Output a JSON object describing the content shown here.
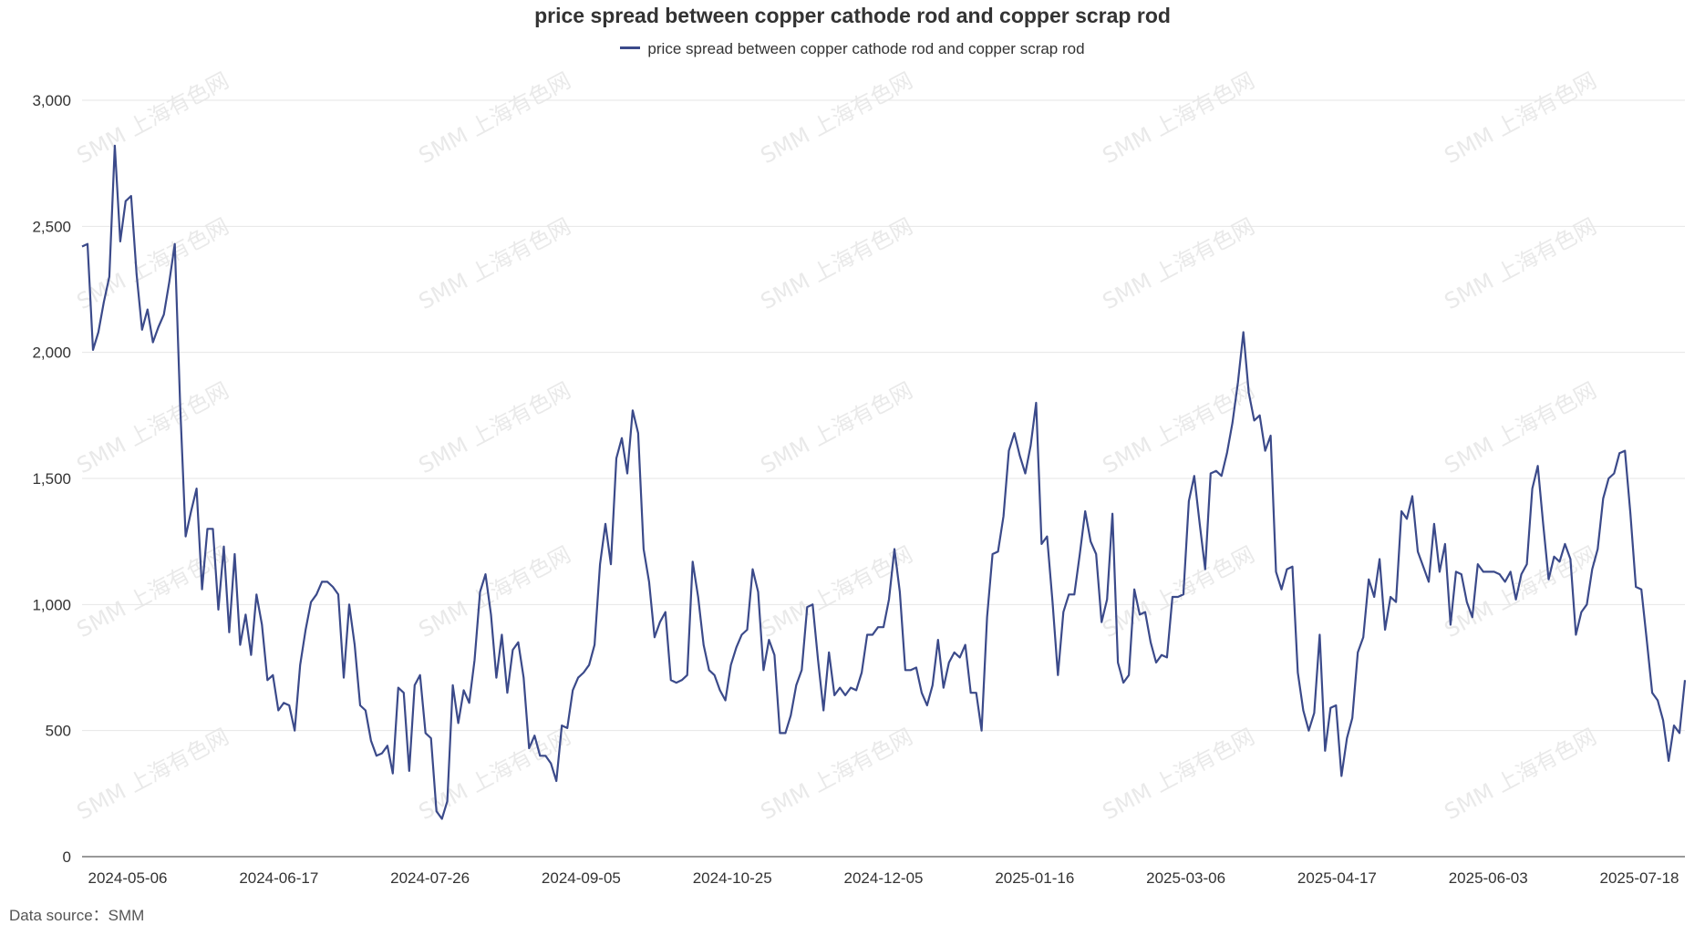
{
  "colors": {
    "line": "#3b4a8a",
    "grid": "#e6e6e6",
    "axis": "#333333"
  },
  "source_text": "Data source：SMM",
  "watermark_text": "SMM 上海有色网",
  "chart_data": {
    "type": "line",
    "title": "price spread between copper cathode rod and copper scrap rod",
    "legend_position": "top-center",
    "grid": true,
    "ylim": [
      0,
      3000
    ],
    "yticks": [
      0,
      500,
      1000,
      1500,
      2000,
      2500,
      3000
    ],
    "ytick_labels": [
      "0",
      "500",
      "1,000",
      "1,500",
      "2,000",
      "2,500",
      "3,000"
    ],
    "xtick_labels": [
      "2024-05-06",
      "2024-06-17",
      "2024-07-26",
      "2024-09-05",
      "2024-10-25",
      "2024-12-05",
      "2025-01-16",
      "2025-03-06",
      "2025-04-17",
      "2025-06-03",
      "2025-07-18"
    ],
    "series": [
      {
        "name": "price spread between copper cathode rod and copper scrap rod",
        "values": [
          2420,
          2430,
          2010,
          2080,
          2200,
          2300,
          2820,
          2440,
          2600,
          2620,
          2310,
          2090,
          2170,
          2040,
          2100,
          2150,
          2280,
          2430,
          1790,
          1270,
          1370,
          1460,
          1060,
          1300,
          1300,
          980,
          1230,
          890,
          1200,
          840,
          960,
          800,
          1040,
          920,
          700,
          720,
          580,
          610,
          600,
          500,
          760,
          900,
          1010,
          1040,
          1090,
          1090,
          1070,
          1040,
          710,
          1000,
          840,
          600,
          580,
          460,
          400,
          410,
          440,
          330,
          670,
          650,
          340,
          680,
          720,
          490,
          470,
          180,
          150,
          220,
          680,
          530,
          660,
          610,
          780,
          1050,
          1120,
          960,
          710,
          880,
          650,
          820,
          850,
          710,
          430,
          480,
          400,
          400,
          370,
          300,
          520,
          510,
          660,
          710,
          730,
          760,
          840,
          1160,
          1320,
          1160,
          1580,
          1660,
          1520,
          1770,
          1680,
          1220,
          1090,
          870,
          930,
          970,
          700,
          690,
          700,
          720,
          1170,
          1030,
          840,
          740,
          720,
          660,
          620,
          760,
          830,
          880,
          900,
          1140,
          1050,
          740,
          860,
          800,
          490,
          490,
          560,
          680,
          740,
          990,
          1000,
          780,
          580,
          810,
          640,
          670,
          640,
          670,
          660,
          730,
          880,
          880,
          910,
          910,
          1020,
          1220,
          1050,
          740,
          740,
          750,
          650,
          600,
          680,
          860,
          670,
          770,
          810,
          790,
          840,
          650,
          650,
          500,
          950,
          1200,
          1210,
          1350,
          1610,
          1680,
          1590,
          1520,
          1630,
          1800,
          1240,
          1270,
          1010,
          720,
          970,
          1040,
          1040,
          1200,
          1370,
          1250,
          1200,
          930,
          1020,
          1360,
          770,
          690,
          720,
          1060,
          960,
          970,
          850,
          770,
          800,
          790,
          1030,
          1030,
          1040,
          1410,
          1510,
          1320,
          1140,
          1520,
          1530,
          1510,
          1600,
          1720,
          1880,
          2080,
          1840,
          1730,
          1750,
          1610,
          1670,
          1130,
          1060,
          1140,
          1150,
          730,
          580,
          500,
          570,
          880,
          420,
          590,
          600,
          320,
          470,
          550,
          810,
          870,
          1100,
          1030,
          1180,
          900,
          1030,
          1010,
          1370,
          1340,
          1430,
          1210,
          1150,
          1090,
          1320,
          1130,
          1240,
          920,
          1130,
          1120,
          1010,
          950,
          1160,
          1130,
          1130,
          1130,
          1120,
          1090,
          1130,
          1020,
          1120,
          1160,
          1460,
          1550,
          1320,
          1100,
          1190,
          1170,
          1240,
          1180,
          880,
          970,
          1000,
          1140,
          1220,
          1420,
          1500,
          1520,
          1600,
          1610,
          1360,
          1070,
          1060,
          860,
          650,
          620,
          540,
          380,
          520,
          490,
          700
        ]
      }
    ]
  }
}
